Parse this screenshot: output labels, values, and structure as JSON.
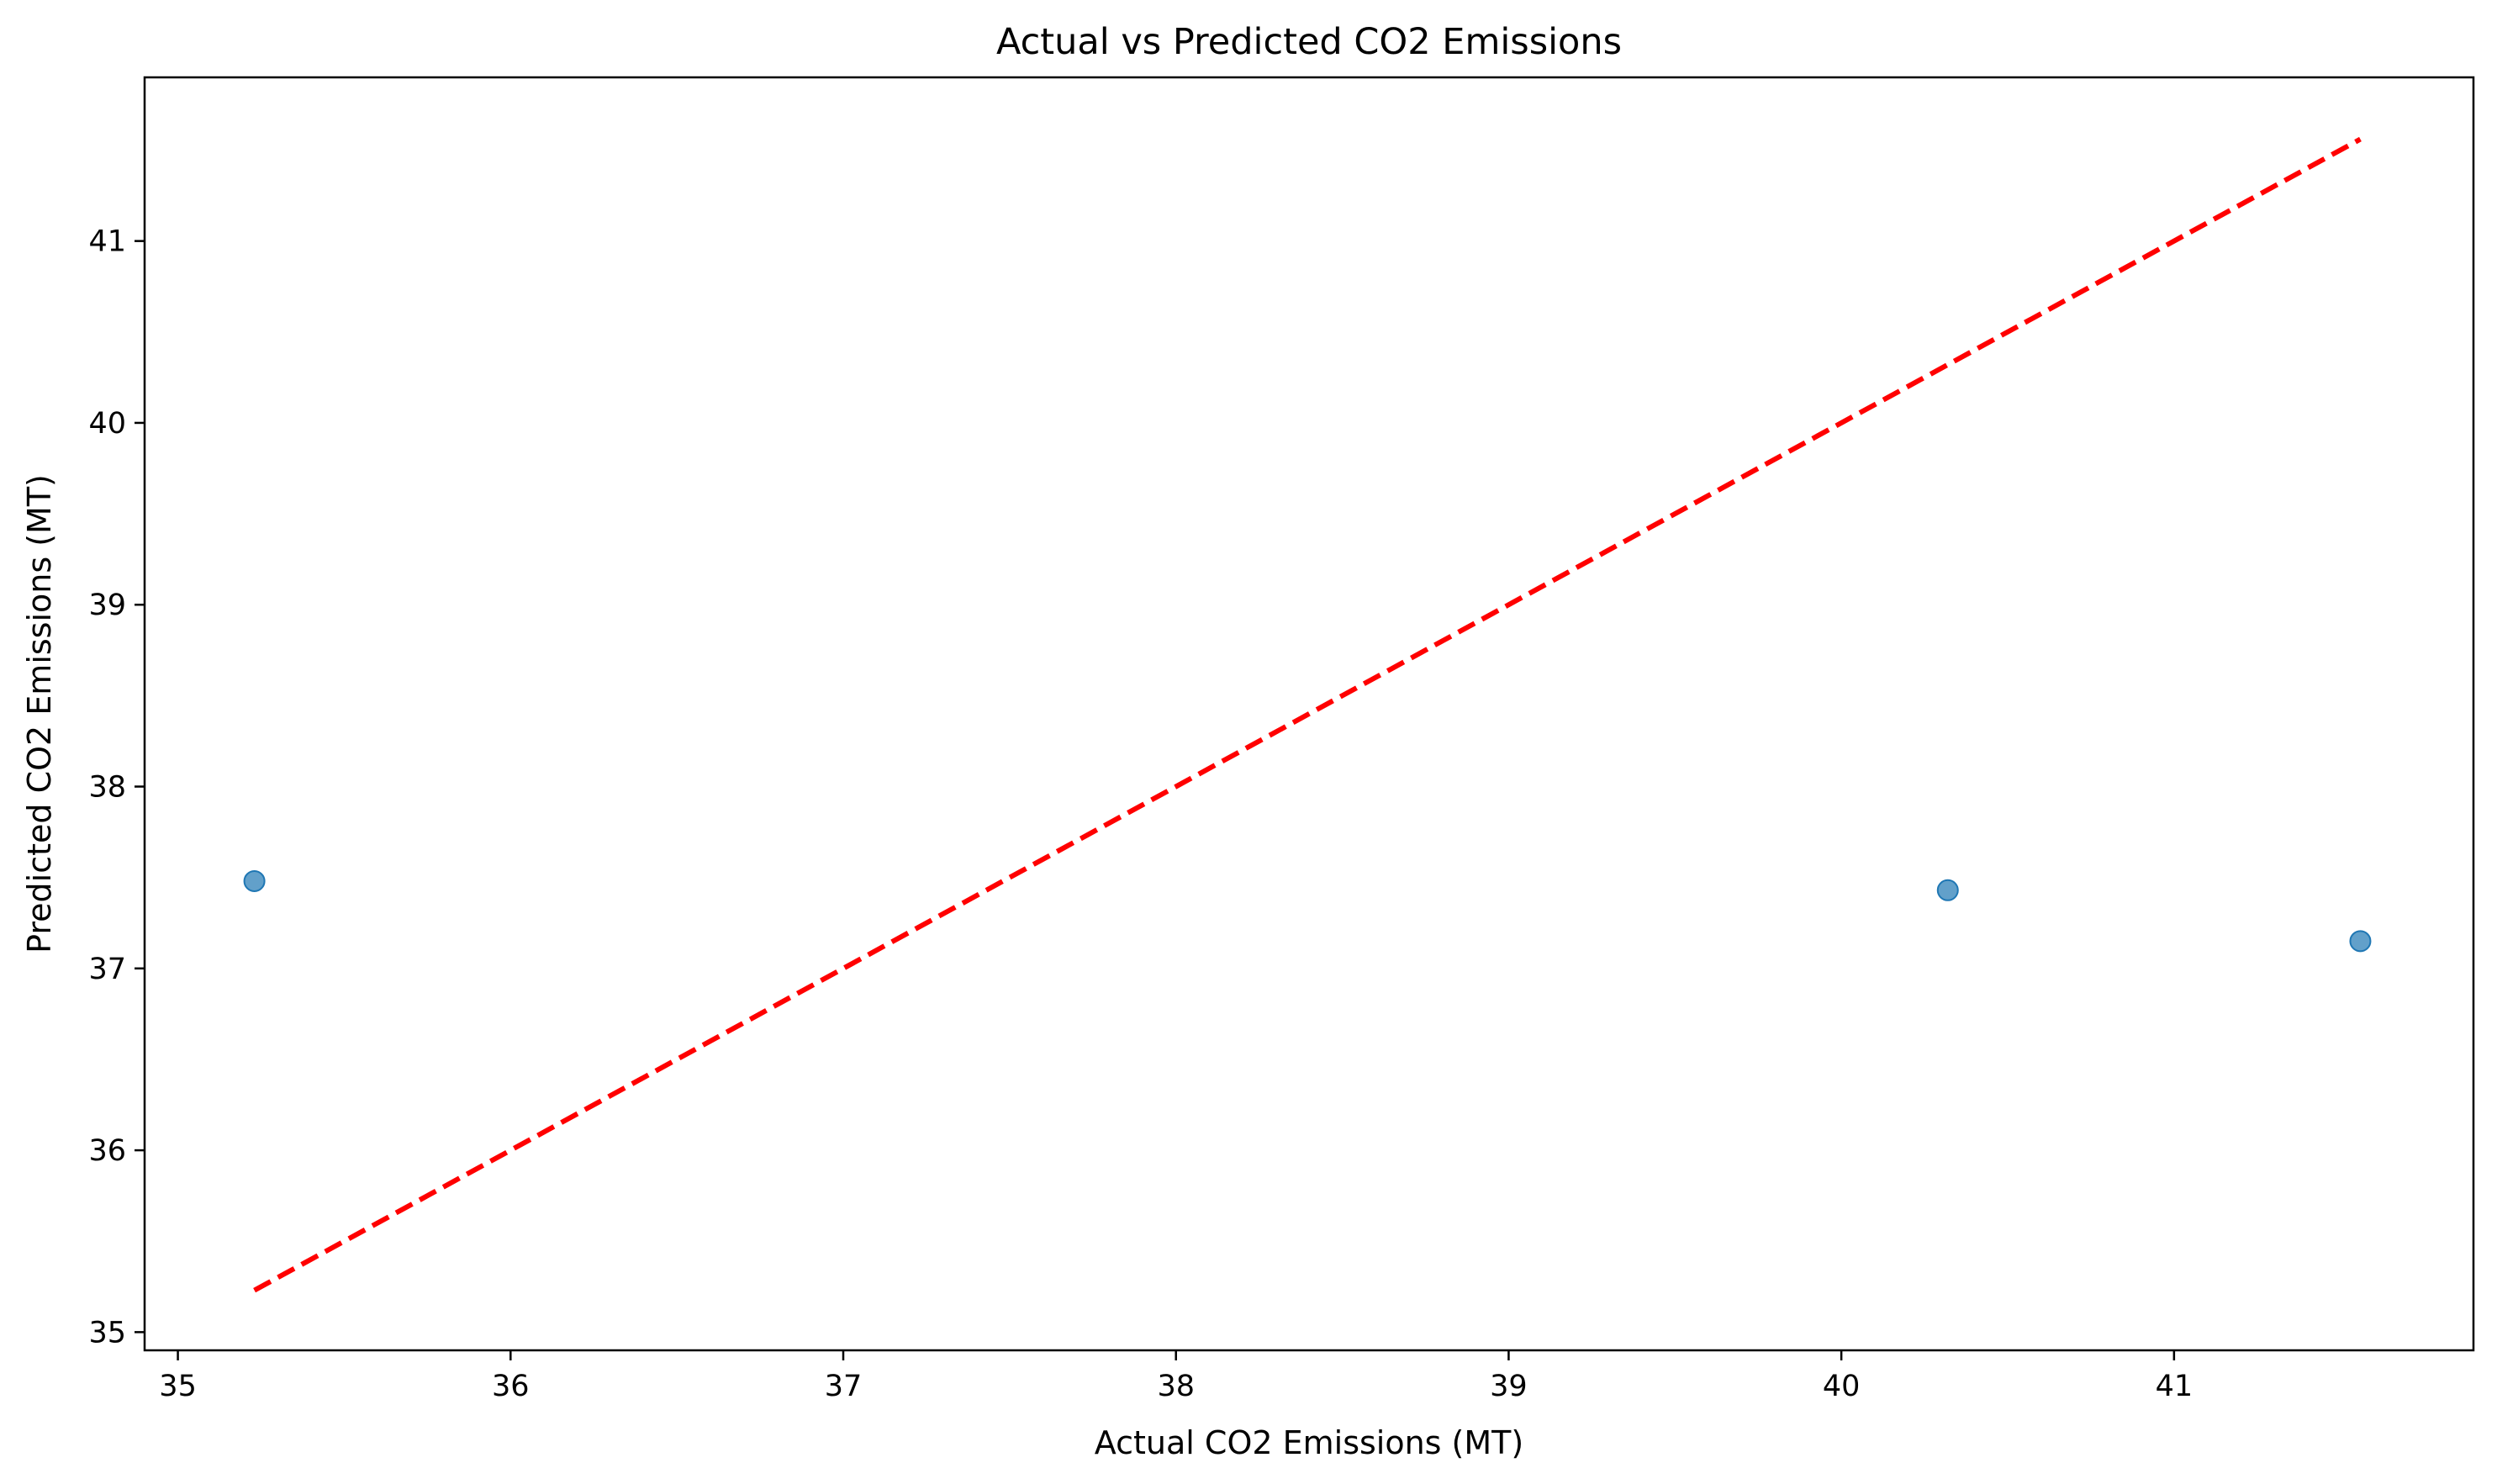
{
  "chart_data": {
    "type": "scatter",
    "title": "Actual vs Predicted CO2 Emissions",
    "xlabel": "Actual CO2 Emissions (MT)",
    "ylabel": "Predicted CO2 Emissions (MT)",
    "xlim": [
      34.9,
      41.9
    ],
    "ylim": [
      34.9,
      41.9
    ],
    "xticks": [
      35,
      36,
      37,
      38,
      39,
      40,
      41
    ],
    "yticks": [
      35,
      36,
      37,
      38,
      39,
      40,
      41
    ],
    "points": [
      {
        "x": 35.23,
        "y": 37.48
      },
      {
        "x": 40.32,
        "y": 37.43
      },
      {
        "x": 41.56,
        "y": 37.15
      }
    ],
    "reference_line": {
      "x": [
        35.23,
        41.56
      ],
      "y": [
        35.23,
        41.56
      ],
      "style": "dashed",
      "color": "#ff0000"
    },
    "point_color": "#1f77b4",
    "grid": false,
    "legend": "none"
  }
}
